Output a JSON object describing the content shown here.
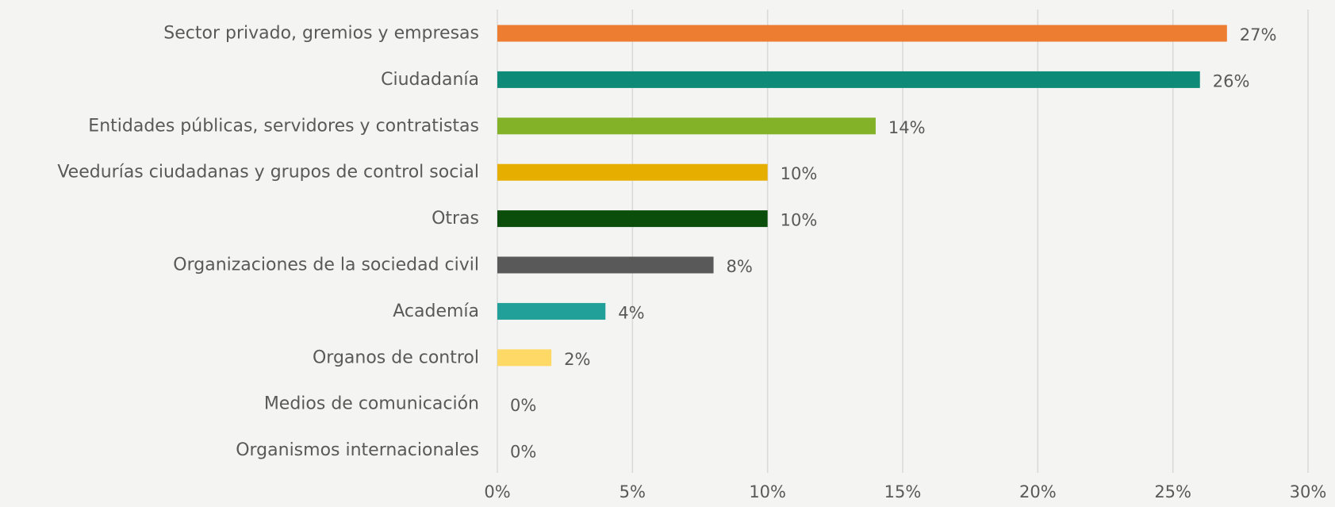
{
  "chart_data": {
    "type": "bar",
    "orientation": "horizontal",
    "categories": [
      "Sector privado, gremios y empresas",
      "Ciudadanía",
      "Entidades públicas, servidores y contratistas",
      "Veedurías ciudadanas y grupos de control social",
      "Otras",
      "Organizaciones de la sociedad civil",
      "Academía",
      "Organos de control",
      "Medios de comunicación",
      "Organismos internacionales"
    ],
    "values": [
      27,
      26,
      14,
      10,
      10,
      8,
      4,
      2,
      0,
      0
    ],
    "value_labels": [
      "27%",
      "26%",
      "14%",
      "10%",
      "10%",
      "8%",
      "4%",
      "2%",
      "0%",
      "0%"
    ],
    "colors": [
      "#ed7d31",
      "#0e8a78",
      "#83b128",
      "#e6af00",
      "#0b4d0b",
      "#595959",
      "#21a099",
      "#ffd966",
      "#bfbfbf",
      "#bfbfbf"
    ],
    "xlim": [
      0,
      30
    ],
    "x_ticks": [
      0,
      5,
      10,
      15,
      20,
      25,
      30
    ],
    "x_tick_labels": [
      "0%",
      "5%",
      "10%",
      "15%",
      "20%",
      "25%",
      "30%"
    ],
    "grid": true,
    "title": "",
    "xlabel": "",
    "ylabel": ""
  }
}
